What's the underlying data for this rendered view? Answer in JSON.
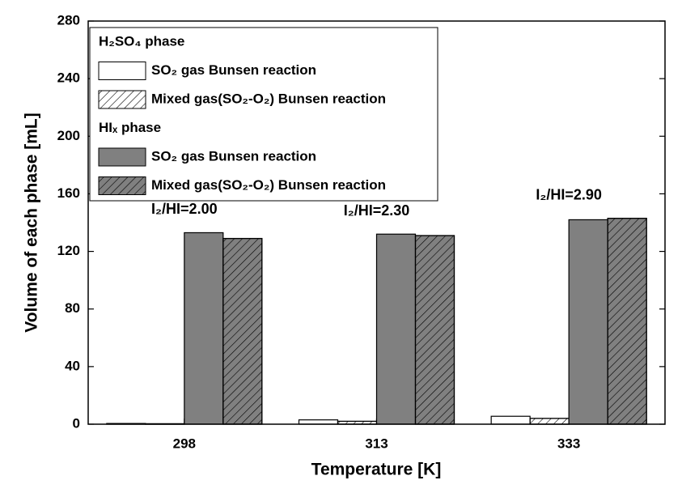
{
  "chart_data": {
    "type": "bar",
    "x_label": "Temperature [K]",
    "y_label": "Volume of each phase [mL]",
    "categories": [
      "298",
      "313",
      "333"
    ],
    "series": [
      {
        "name": "SO₂ gas Bunsen reaction",
        "color": "#ffffff",
        "hatch": false,
        "values": [
          0.5,
          3,
          5.5
        ]
      },
      {
        "name": "Mixed gas(SO₂-O₂) Bunsen reaction",
        "color": "#ffffff",
        "hatch": true,
        "values": [
          0.3,
          2,
          4
        ]
      },
      {
        "name": "SO₂ gas Bunsen reaction",
        "color": "#808080",
        "hatch": false,
        "values": [
          133,
          132,
          142
        ]
      },
      {
        "name": "Mixed gas(SO₂-O₂) Bunsen reaction",
        "color": "#808080",
        "hatch": true,
        "values": [
          129,
          131,
          143
        ]
      }
    ],
    "legend_groups": [
      "H₂SO₄ phase",
      "HIₓ phase"
    ],
    "annotations": [
      "I₂/HI=2.00",
      "I₂/HI=2.30",
      "I₂/HI=2.90"
    ],
    "ylim": [
      0,
      280
    ],
    "yticks": [
      0,
      40,
      80,
      120,
      160,
      200,
      240,
      280
    ],
    "legend_position": "upper left"
  }
}
